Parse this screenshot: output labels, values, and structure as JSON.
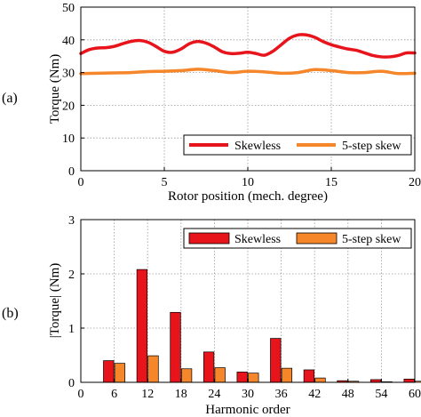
{
  "panel_labels": {
    "a": "(a)",
    "b": "(b)"
  },
  "chart_data": [
    {
      "type": "line",
      "panel": "(a)",
      "xlabel": "Rotor position (mech. degree)",
      "ylabel": "Torque (Nm)",
      "xlim": [
        0,
        20
      ],
      "ylim": [
        0,
        50
      ],
      "xticks": [
        0,
        5,
        10,
        15,
        20
      ],
      "yticks": [
        0,
        10,
        20,
        30,
        40,
        50
      ],
      "grid": true,
      "legend_position": "bottom-right",
      "series": [
        {
          "name": "Skewless",
          "color": "#e8141c",
          "x": [
            0,
            0.5,
            1,
            1.5,
            2,
            2.5,
            3,
            3.5,
            4,
            4.5,
            5,
            5.5,
            6,
            6.5,
            7,
            7.5,
            8,
            8.5,
            9,
            9.5,
            10,
            10.5,
            11,
            11.5,
            12,
            12.5,
            13,
            13.5,
            14,
            14.5,
            15,
            15.5,
            16,
            16.5,
            17,
            17.5,
            18,
            18.5,
            19,
            19.5,
            20
          ],
          "y": [
            35.8,
            37.0,
            37.5,
            37.6,
            38.0,
            38.8,
            39.5,
            39.8,
            39.3,
            38.0,
            36.5,
            36.2,
            37.2,
            38.8,
            39.5,
            39.0,
            37.8,
            36.3,
            35.8,
            35.9,
            36.2,
            35.8,
            35.3,
            36.5,
            38.5,
            40.5,
            41.5,
            41.5,
            40.8,
            39.5,
            38.5,
            37.8,
            37.2,
            36.8,
            36.0,
            35.2,
            34.8,
            34.8,
            35.2,
            36.0,
            36.0
          ]
        },
        {
          "name": "5-step skew",
          "color": "#f5862a",
          "x": [
            0,
            1,
            2,
            3,
            4,
            5,
            6,
            7,
            8,
            9,
            10,
            11,
            12,
            13,
            14,
            15,
            16,
            17,
            18,
            19,
            20
          ],
          "y": [
            29.7,
            29.8,
            29.9,
            30.0,
            30.3,
            30.4,
            30.6,
            31.0,
            30.6,
            30.0,
            30.4,
            30.2,
            29.8,
            30.0,
            30.9,
            30.6,
            30.0,
            30.0,
            30.4,
            29.7,
            29.8
          ]
        }
      ]
    },
    {
      "type": "bar",
      "panel": "(b)",
      "xlabel": "Harmonic order",
      "ylabel": "|Torque| (Nm)",
      "xlim": [
        0,
        60
      ],
      "ylim": [
        0,
        3
      ],
      "xticks": [
        0,
        6,
        12,
        18,
        24,
        30,
        36,
        42,
        48,
        54,
        60
      ],
      "yticks": [
        0,
        1,
        2,
        3
      ],
      "grid": true,
      "legend_position": "top-right",
      "categories": [
        6,
        12,
        18,
        24,
        30,
        36,
        42,
        48,
        54,
        60
      ],
      "series": [
        {
          "name": "Skewless",
          "color": "#e8141c",
          "values": [
            0.4,
            2.08,
            1.29,
            0.56,
            0.19,
            0.81,
            0.23,
            0.03,
            0.05,
            0.06
          ]
        },
        {
          "name": "5-step skew",
          "color": "#f5862a",
          "values": [
            0.35,
            0.49,
            0.25,
            0.27,
            0.17,
            0.26,
            0.08,
            0.02,
            0.01,
            0.02
          ]
        }
      ]
    }
  ]
}
